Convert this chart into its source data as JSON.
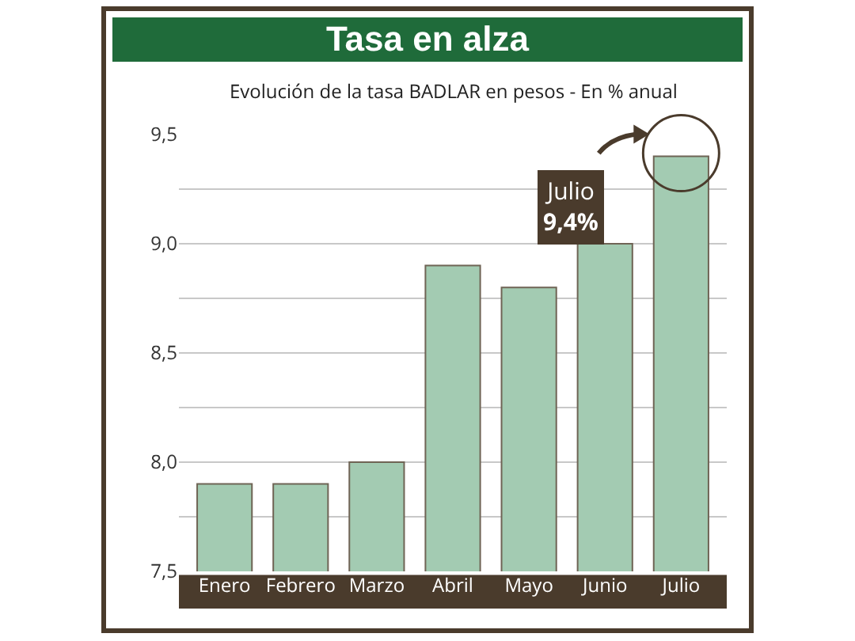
{
  "chart_data": {
    "type": "bar",
    "title": "Tasa en alza",
    "subtitle": "Evolución de la tasa BADLAR en pesos - En % anual",
    "categories": [
      "Enero",
      "Febrero",
      "Marzo",
      "Abril",
      "Mayo",
      "Junio",
      "Julio"
    ],
    "values": [
      7.9,
      7.9,
      8.0,
      8.9,
      8.8,
      9.0,
      9.4
    ],
    "color": "#a3cbb2",
    "ylim": [
      7.5,
      9.5
    ],
    "yticks": [
      {
        "value": 7.5,
        "label": "7,5"
      },
      {
        "value": 7.75,
        "label": null
      },
      {
        "value": 8.0,
        "label": "8,0"
      },
      {
        "value": 8.25,
        "label": null
      },
      {
        "value": 8.5,
        "label": "8,5"
      },
      {
        "value": 8.75,
        "label": null
      },
      {
        "value": 9.0,
        "label": "9,0"
      },
      {
        "value": 9.25,
        "label": null
      },
      {
        "value": 9.5,
        "label": "9,5"
      }
    ],
    "grid": true,
    "annotations": [
      "Julio\n9,4%"
    ]
  }
}
